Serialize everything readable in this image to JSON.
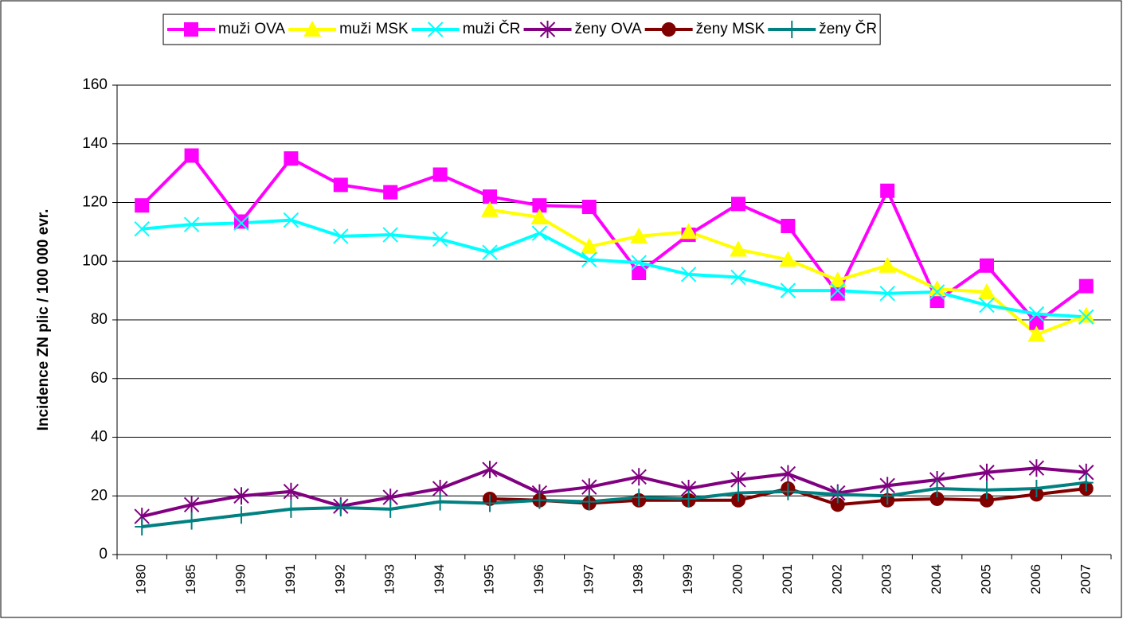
{
  "chart_data": {
    "type": "line",
    "y_label": "Incidence ZN plic / 100 000 evr.",
    "categories": [
      "1980",
      "1985",
      "1990",
      "1991",
      "1992",
      "1993",
      "1994",
      "1995",
      "1996",
      "1997",
      "1998",
      "1999",
      "2000",
      "2001",
      "2002",
      "2003",
      "2004",
      "2005",
      "2006",
      "2007"
    ],
    "ylim": [
      0,
      160
    ],
    "yticks": [
      0,
      20,
      40,
      60,
      80,
      100,
      120,
      140,
      160
    ],
    "grid": true,
    "legend": "top",
    "series": [
      {
        "name": "muži OVA",
        "color": "#ff00ff",
        "marker": "square",
        "values": [
          119,
          136,
          113.5,
          135,
          126,
          123.5,
          129.5,
          122,
          119,
          118.5,
          96,
          109,
          119.5,
          112,
          89,
          124,
          86.5,
          98.5,
          79,
          91.5
        ]
      },
      {
        "name": "muži MSK",
        "color": "#ffff00",
        "marker": "triangle",
        "values": [
          null,
          null,
          null,
          null,
          null,
          null,
          null,
          117.5,
          115,
          105,
          108.5,
          110,
          104,
          100.5,
          93.5,
          98.5,
          90.5,
          89.5,
          75,
          81.5
        ]
      },
      {
        "name": "muži ČR",
        "color": "#00ffff",
        "marker": "x",
        "values": [
          111,
          112.5,
          113,
          114,
          108.5,
          109,
          107.5,
          103,
          109.5,
          100.5,
          99.5,
          95.5,
          94.5,
          90,
          90,
          89,
          89.5,
          85,
          82,
          81
        ]
      },
      {
        "name": "ženy OVA",
        "color": "#800080",
        "marker": "star",
        "values": [
          13,
          17,
          20,
          21.5,
          16.5,
          19.5,
          22.5,
          29,
          21,
          23,
          26.5,
          22.5,
          25.5,
          27.5,
          21,
          23.5,
          25.5,
          28,
          29.5,
          28
        ]
      },
      {
        "name": "ženy MSK",
        "color": "#800000",
        "marker": "circle",
        "values": [
          null,
          null,
          null,
          null,
          null,
          null,
          null,
          19,
          18.5,
          17.5,
          18.5,
          18.5,
          18.5,
          22.5,
          17,
          18.5,
          19,
          18.5,
          20.5,
          22.5
        ]
      },
      {
        "name": "ženy ČR",
        "color": "#008080",
        "marker": "plus",
        "values": [
          9.5,
          11.5,
          13.5,
          15.5,
          16,
          15.5,
          18,
          17.5,
          18.5,
          18,
          19.5,
          19,
          21,
          21.5,
          20.5,
          20,
          22.5,
          22,
          22.5,
          24.5
        ]
      }
    ]
  }
}
